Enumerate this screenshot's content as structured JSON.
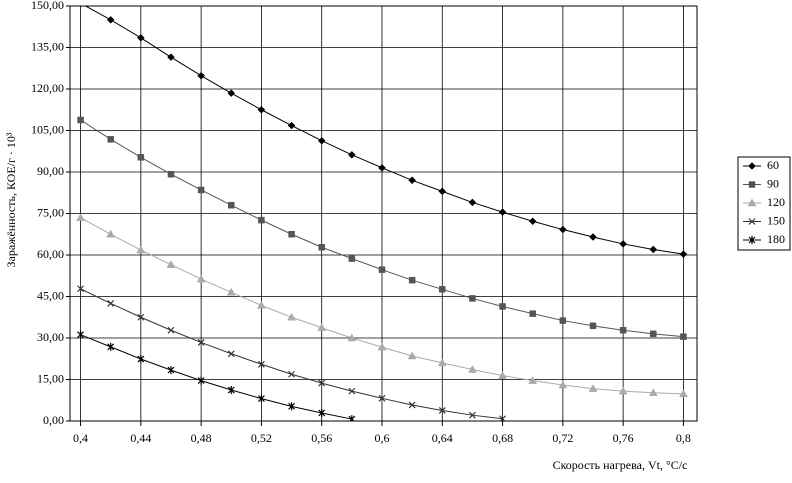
{
  "chart_data": {
    "type": "line",
    "x_label": "Скорость нагрева,  Vt, °С/с",
    "y_label": "Заражённость, КОЕ/г · 10³",
    "x": [
      0.4,
      0.42,
      0.44,
      0.46,
      0.48,
      0.5,
      0.52,
      0.54,
      0.56,
      0.58,
      0.6,
      0.62,
      0.64,
      0.66,
      0.68,
      0.7,
      0.72,
      0.74,
      0.76,
      0.78,
      0.8
    ],
    "series": [
      {
        "name": "60",
        "color": "#000000",
        "marker": "diamond",
        "values": [
          151,
          145,
          138.5,
          131.5,
          124.8,
          118.5,
          112.5,
          106.8,
          101.3,
          96.2,
          91.5,
          87,
          83,
          79,
          75.5,
          72.2,
          69.2,
          66.5,
          64,
          62,
          60.3
        ]
      },
      {
        "name": "90",
        "color": "#555555",
        "marker": "square",
        "values": [
          108.8,
          101.8,
          95.3,
          89.2,
          83.5,
          78,
          72.6,
          67.5,
          62.8,
          58.7,
          54.7,
          50.9,
          47.6,
          44.3,
          41.4,
          38.8,
          36.3,
          34.4,
          32.8,
          31.5,
          30.5
        ]
      },
      {
        "name": "120",
        "color": "#aaaaaa",
        "marker": "triangle",
        "values": [
          73.5,
          67.5,
          61.8,
          56.5,
          51.3,
          46.5,
          41.8,
          37.5,
          33.7,
          30,
          26.7,
          23.5,
          21,
          18.6,
          16.4,
          14.6,
          13,
          11.7,
          10.8,
          10.2,
          9.8
        ]
      },
      {
        "name": "150",
        "color": "#333333",
        "marker": "cross",
        "values": [
          47.8,
          42.5,
          37.5,
          32.8,
          28.4,
          24.3,
          20.5,
          16.9,
          13.7,
          10.8,
          8.2,
          5.8,
          3.8,
          2.1,
          0.8,
          null,
          null,
          null,
          null,
          null,
          null
        ]
      },
      {
        "name": "180",
        "color": "#000000",
        "marker": "star",
        "values": [
          31.2,
          26.8,
          22.4,
          18.4,
          14.6,
          11.2,
          8.1,
          5.3,
          2.9,
          0.7,
          null,
          null,
          null,
          null,
          null,
          null,
          null,
          null,
          null,
          null,
          null
        ]
      }
    ],
    "xlim": [
      0.393,
      0.809
    ],
    "xticks": [
      {
        "value": 0.4,
        "label": "0,4"
      },
      {
        "value": 0.44,
        "label": "0,44"
      },
      {
        "value": 0.48,
        "label": "0,48"
      },
      {
        "value": 0.52,
        "label": "0,52"
      },
      {
        "value": 0.56,
        "label": "0,56"
      },
      {
        "value": 0.6,
        "label": "0,6"
      },
      {
        "value": 0.64,
        "label": "0,64"
      },
      {
        "value": 0.68,
        "label": "0,68"
      },
      {
        "value": 0.72,
        "label": "0,72"
      },
      {
        "value": 0.76,
        "label": "0,76"
      },
      {
        "value": 0.8,
        "label": "0,8"
      }
    ],
    "ylim": [
      0,
      150
    ],
    "yticks": [
      {
        "value": 0,
        "label": "0,00"
      },
      {
        "value": 15,
        "label": "15,00"
      },
      {
        "value": 30,
        "label": "30,00"
      },
      {
        "value": 45,
        "label": "45,00"
      },
      {
        "value": 60,
        "label": "60,00"
      },
      {
        "value": 75,
        "label": "75,00"
      },
      {
        "value": 90,
        "label": "90,00"
      },
      {
        "value": 105,
        "label": "105,00"
      },
      {
        "value": 120,
        "label": "120,00"
      },
      {
        "value": 135,
        "label": "135,00"
      },
      {
        "value": 150,
        "label": "150,00"
      }
    ],
    "grid": true,
    "legend": "right"
  }
}
